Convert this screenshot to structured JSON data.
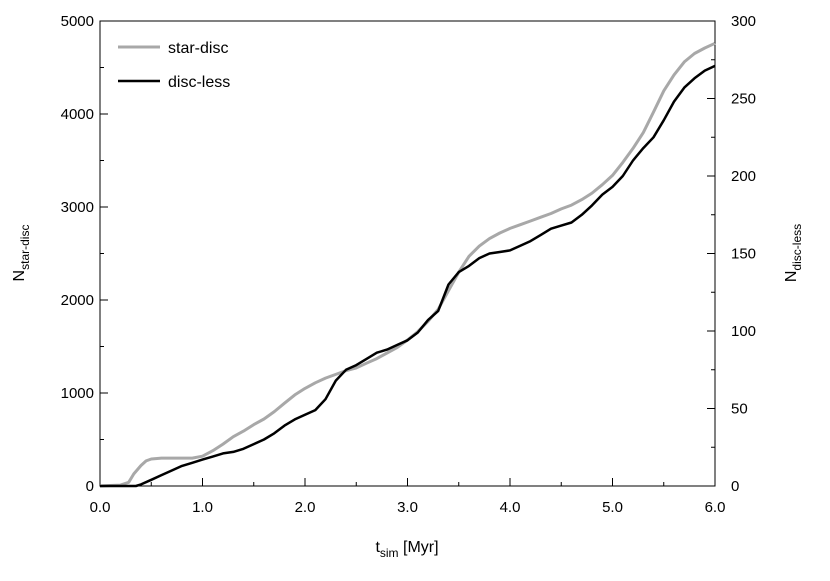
{
  "chart_data": {
    "type": "line",
    "title": "",
    "xlabel": {
      "main": "t",
      "sub": "sim",
      "suffix": " [Myr]"
    },
    "ylabel_left": {
      "main": "N",
      "sub": "star-disc"
    },
    "ylabel_right": {
      "main": "N",
      "sub": "disc-less"
    },
    "xlim": [
      0,
      6
    ],
    "ylim_left": [
      0,
      5000
    ],
    "ylim_right": [
      0,
      300
    ],
    "x_ticks": [
      "0.0",
      "1.0",
      "2.0",
      "3.0",
      "4.0",
      "5.0",
      "6.0"
    ],
    "y_left_ticks": [
      "0",
      "1000",
      "2000",
      "3000",
      "4000",
      "5000"
    ],
    "y_right_ticks": [
      "0",
      "50",
      "100",
      "150",
      "200",
      "250",
      "300"
    ],
    "grid": false,
    "legend_position": "top-left",
    "series": [
      {
        "name": "star-disc",
        "axis": "left",
        "color": "#a8a8a8",
        "x": [
          0.0,
          0.1,
          0.2,
          0.28,
          0.33,
          0.4,
          0.45,
          0.5,
          0.6,
          0.7,
          0.8,
          0.9,
          1.0,
          1.1,
          1.2,
          1.3,
          1.4,
          1.5,
          1.6,
          1.7,
          1.8,
          1.9,
          2.0,
          2.1,
          2.2,
          2.3,
          2.4,
          2.5,
          2.6,
          2.7,
          2.8,
          2.9,
          3.0,
          3.1,
          3.2,
          3.3,
          3.4,
          3.5,
          3.6,
          3.7,
          3.8,
          3.9,
          4.0,
          4.1,
          4.2,
          4.3,
          4.4,
          4.5,
          4.6,
          4.7,
          4.8,
          4.9,
          5.0,
          5.1,
          5.2,
          5.3,
          5.4,
          5.5,
          5.6,
          5.7,
          5.8,
          5.9,
          6.0
        ],
        "values": [
          0,
          5,
          10,
          40,
          130,
          220,
          270,
          290,
          300,
          300,
          300,
          300,
          320,
          380,
          450,
          530,
          590,
          660,
          720,
          800,
          890,
          980,
          1050,
          1110,
          1160,
          1200,
          1240,
          1270,
          1320,
          1370,
          1430,
          1490,
          1570,
          1660,
          1770,
          1900,
          2100,
          2300,
          2470,
          2580,
          2660,
          2720,
          2770,
          2810,
          2850,
          2890,
          2930,
          2980,
          3020,
          3080,
          3150,
          3240,
          3340,
          3480,
          3630,
          3800,
          4020,
          4250,
          4420,
          4560,
          4650,
          4710,
          4760
        ]
      },
      {
        "name": "disc-less",
        "axis": "right",
        "color": "#000000",
        "x": [
          0.0,
          0.2,
          0.35,
          0.4,
          0.5,
          0.6,
          0.7,
          0.8,
          0.9,
          1.0,
          1.1,
          1.2,
          1.3,
          1.4,
          1.5,
          1.6,
          1.7,
          1.8,
          1.9,
          2.0,
          2.1,
          2.2,
          2.3,
          2.4,
          2.5,
          2.6,
          2.7,
          2.8,
          2.9,
          3.0,
          3.1,
          3.2,
          3.3,
          3.4,
          3.5,
          3.6,
          3.7,
          3.8,
          3.9,
          4.0,
          4.1,
          4.2,
          4.3,
          4.4,
          4.5,
          4.6,
          4.7,
          4.8,
          4.9,
          5.0,
          5.1,
          5.2,
          5.3,
          5.4,
          5.5,
          5.6,
          5.7,
          5.8,
          5.9,
          6.0
        ],
        "values": [
          0,
          0,
          0,
          1,
          4,
          7,
          10,
          13,
          15,
          17,
          19,
          21,
          22,
          24,
          27,
          30,
          34,
          39,
          43,
          46,
          49,
          56,
          68,
          75,
          78,
          82,
          86,
          88,
          91,
          94,
          99,
          107,
          113,
          130,
          138,
          142,
          147,
          150,
          151,
          152,
          155,
          158,
          162,
          166,
          168,
          170,
          175,
          181,
          188,
          193,
          200,
          210,
          218,
          225,
          236,
          248,
          257,
          263,
          268,
          271
        ]
      }
    ]
  }
}
